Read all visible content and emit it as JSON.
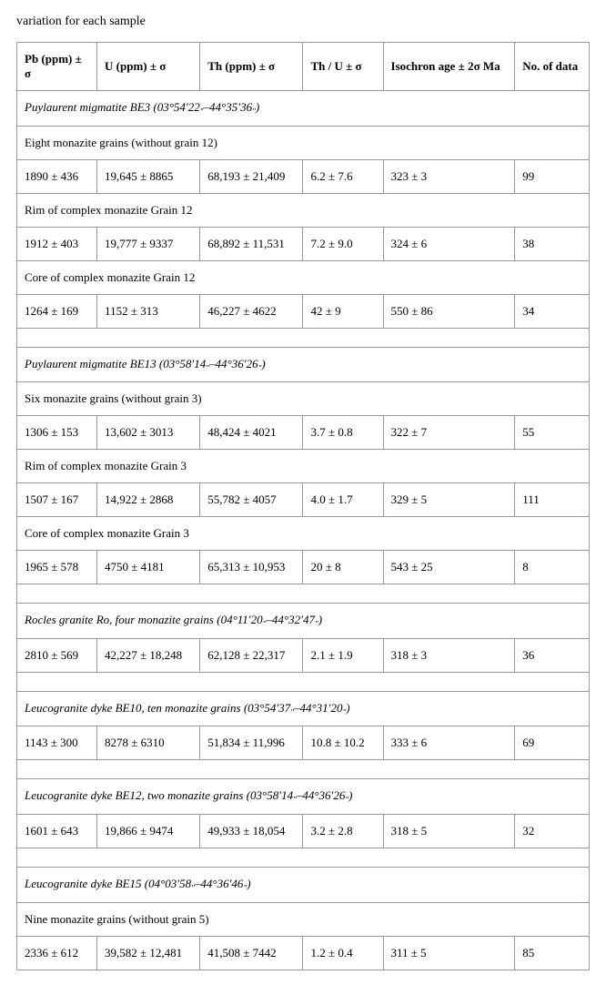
{
  "caption": "variation for each sample",
  "headers": {
    "pb": "Pb (ppm) ± σ",
    "u": "U (ppm) ± σ",
    "th": "Th (ppm) ± σ",
    "thu": "Th / U ± σ",
    "age": "Isochron age ± 2σ Ma",
    "n": "No. of data"
  },
  "sections": [
    {
      "title_pre": "Puylaurent migmatite BE3 (03°54′22",
      "title_small1": "″",
      "title_mid": "–44°35′36",
      "title_small2": "″",
      "title_post": ")",
      "groups": [
        {
          "sub": "Eight monazite grains (without grain 12)",
          "row": {
            "pb": "1890 ± 436",
            "u": "19,645 ± 8865",
            "th": "68,193 ± 21,409",
            "thu": "6.2 ± 7.6",
            "age": "323 ± 3",
            "n": "99"
          }
        },
        {
          "sub": "Rim of complex monazite Grain 12",
          "row": {
            "pb": "1912 ± 403",
            "u": "19,777 ± 9337",
            "th": "68,892 ± 11,531",
            "thu": "7.2 ± 9.0",
            "age": "324 ± 6",
            "n": "38"
          }
        },
        {
          "sub": "Core of complex monazite Grain 12",
          "row": {
            "pb": "1264 ± 169",
            "u": "1152 ± 313",
            "th": "46,227 ± 4622",
            "thu": "42 ± 9",
            "age": "550 ± 86",
            "n": "34"
          }
        }
      ]
    },
    {
      "title_pre": "Puylaurent migmatite BE13 (03°58′14",
      "title_small1": "″",
      "title_mid": "–44°36′26",
      "title_small2": "″",
      "title_post": ")",
      "groups": [
        {
          "sub": "Six monazite grains (without grain 3)",
          "row": {
            "pb": "1306 ± 153",
            "u": "13,602 ± 3013",
            "th": "48,424 ± 4021",
            "thu": "3.7 ± 0.8",
            "age": "322 ± 7",
            "n": "55"
          }
        },
        {
          "sub": "Rim of complex monazite Grain 3",
          "row": {
            "pb": "1507 ± 167",
            "u": "14,922 ± 2868",
            "th": "55,782 ± 4057",
            "thu": "4.0 ± 1.7",
            "age": "329 ± 5",
            "n": "111"
          }
        },
        {
          "sub": "Core of complex monazite Grain 3",
          "row": {
            "pb": "1965 ± 578",
            "u": "4750 ± 4181",
            "th": "65,313 ± 10,953",
            "thu": "20 ± 8",
            "age": "543 ± 25",
            "n": "8"
          }
        }
      ]
    },
    {
      "title_pre": "Rocles granite Ro, four monazite grains (04°11′20",
      "title_small1": "″",
      "title_mid": "–44°32′47",
      "title_small2": "″",
      "title_post": ")",
      "groups": [
        {
          "sub": null,
          "row": {
            "pb": "2810 ± 569",
            "u": "42,227 ± 18,248",
            "th": "62,128 ± 22,317",
            "thu": "2.1 ± 1.9",
            "age": "318 ± 3",
            "n": "36"
          }
        }
      ]
    },
    {
      "title_pre": "Leucogranite dyke BE10, ten monazite grains (03°54′37",
      "title_small1": "″",
      "title_mid": "–44°31′20",
      "title_small2": "″",
      "title_post": ")",
      "groups": [
        {
          "sub": null,
          "row": {
            "pb": "1143 ± 300",
            "u": "8278 ± 6310",
            "th": "51,834 ± 11,996",
            "thu": "10.8 ± 10.2",
            "age": "333 ± 6",
            "n": "69"
          }
        }
      ]
    },
    {
      "title_pre": "Leucogranite dyke BE12, two monazite grains (03°58′14",
      "title_small1": "″",
      "title_mid": "–44°36′26",
      "title_small2": "″",
      "title_post": ")",
      "groups": [
        {
          "sub": null,
          "row": {
            "pb": "1601 ± 643",
            "u": "19,866 ± 9474",
            "th": "49,933 ± 18,054",
            "thu": "3.2 ± 2.8",
            "age": "318 ± 5",
            "n": "32"
          }
        }
      ]
    },
    {
      "title_pre": "Leucogranite dyke BE15 (04°03′58",
      "title_small1": "″",
      "title_mid": "–44°36′46",
      "title_small2": "″",
      "title_post": ")",
      "groups": [
        {
          "sub": "Nine monazite grains (without grain 5)",
          "row": {
            "pb": "2336 ± 612",
            "u": "39,582 ± 12,481",
            "th": "41,508 ± 7442",
            "thu": "1.2 ± 0.4",
            "age": "311 ± 5",
            "n": "85"
          }
        }
      ],
      "no_trailing_spacer": true
    }
  ]
}
